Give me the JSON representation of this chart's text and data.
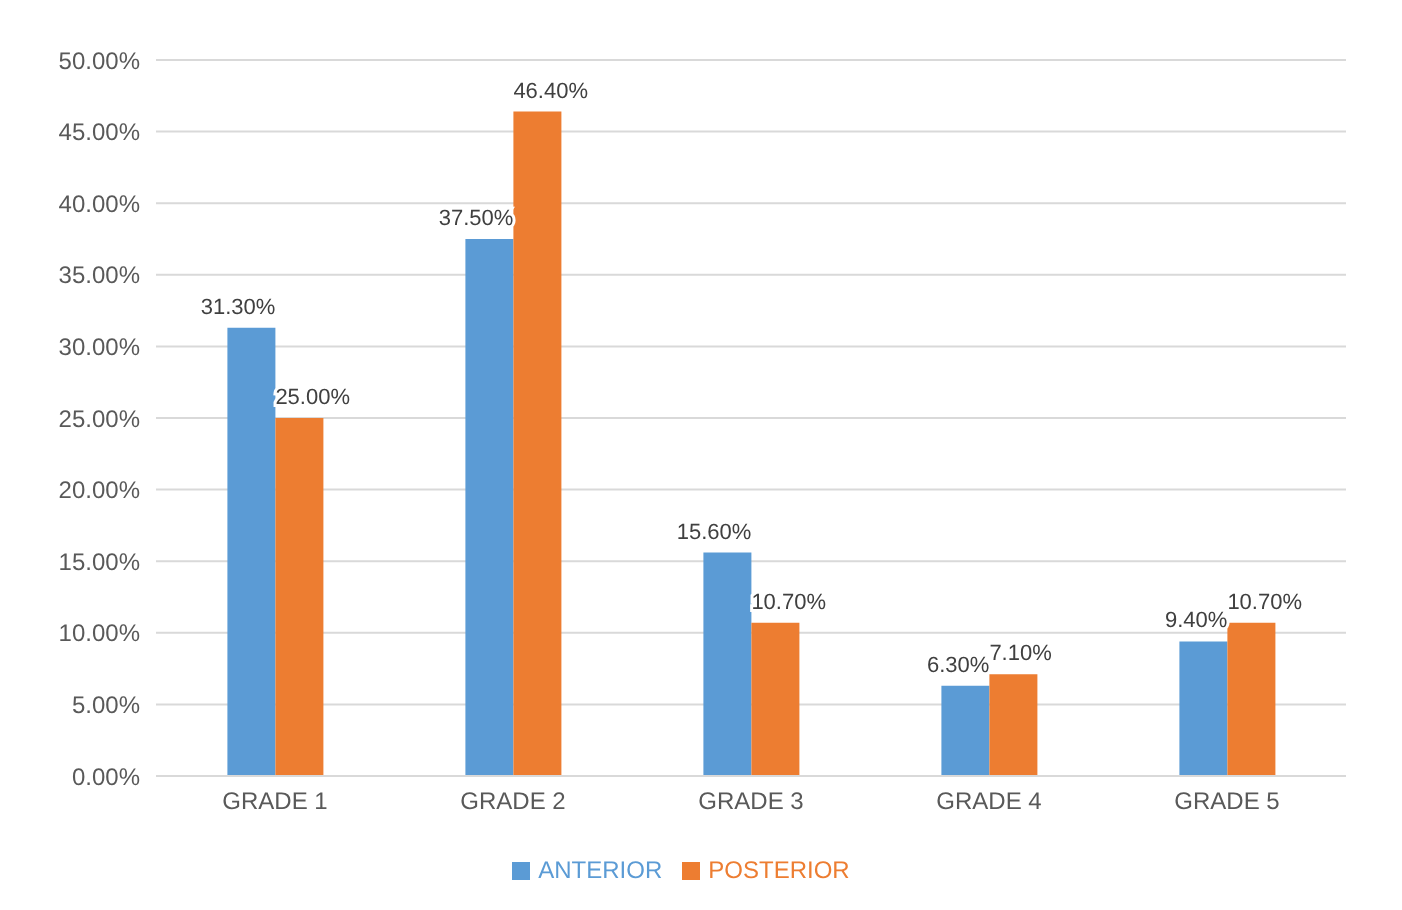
{
  "chart_data": {
    "type": "bar",
    "categories": [
      "GRADE 1",
      "GRADE 2",
      "GRADE 3",
      "GRADE 4",
      "GRADE 5"
    ],
    "series": [
      {
        "name": "ANTERIOR",
        "color": "#5b9bd5",
        "values": [
          31.3,
          37.5,
          15.6,
          6.3,
          9.4
        ],
        "value_labels": [
          "31.30%",
          "37.50%",
          "15.60%",
          "6.30%",
          "9.40%"
        ]
      },
      {
        "name": "POSTERIOR",
        "color": "#ed7d31",
        "values": [
          25.0,
          46.4,
          10.7,
          7.1,
          10.7
        ],
        "value_labels": [
          "25.00%",
          "46.40%",
          "10.70%",
          "7.10%",
          "10.70%"
        ]
      }
    ],
    "ylim": [
      0,
      50
    ],
    "yticks": [
      {
        "value": 0,
        "label": "0.00%"
      },
      {
        "value": 5,
        "label": "5.00%"
      },
      {
        "value": 10,
        "label": "10.00%"
      },
      {
        "value": 15,
        "label": "15.00%"
      },
      {
        "value": 20,
        "label": "20.00%"
      },
      {
        "value": 25,
        "label": "25.00%"
      },
      {
        "value": 30,
        "label": "30.00%"
      },
      {
        "value": 35,
        "label": "35.00%"
      },
      {
        "value": 40,
        "label": "40.00%"
      },
      {
        "value": 45,
        "label": "45.00%"
      },
      {
        "value": 50,
        "label": "50.00%"
      }
    ],
    "grid": "y",
    "legend": "bottom"
  }
}
